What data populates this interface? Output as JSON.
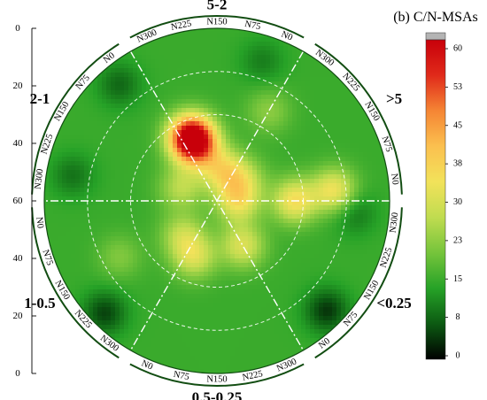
{
  "chart_data": {
    "type": "heatmap",
    "projection": "polar",
    "title": "(b) C/N-MSAs",
    "sectors": [
      {
        "label": "5-2",
        "angle_deg": 90
      },
      {
        "label": ">5",
        "angle_deg": 30
      },
      {
        "label": "<0.25",
        "angle_deg": -30
      },
      {
        "label": "0.5-0.25",
        "angle_deg": -90
      },
      {
        "label": "1-0.5",
        "angle_deg": -150
      },
      {
        "label": "2-1",
        "angle_deg": 150
      }
    ],
    "ring_ticks": [
      "N0",
      "N75",
      "N150",
      "N225",
      "N300"
    ],
    "left_axis": {
      "upper": [
        "0",
        "20",
        "40",
        "60"
      ],
      "lower": [
        "60",
        "40",
        "20",
        "0"
      ]
    },
    "colorbar": {
      "ticks": [
        "60",
        "53",
        "45",
        "38",
        "30",
        "23",
        "15",
        "8",
        "0"
      ],
      "range": [
        0,
        60
      ],
      "colors": [
        "#000000",
        "#0c5a12",
        "#26a227",
        "#75c43b",
        "#c0dc50",
        "#f2e25a",
        "#fbc04f",
        "#f58534",
        "#e02a1a",
        "#c8000a"
      ],
      "over_color": "#b4b4b4"
    },
    "background_value": 15,
    "hotspots": [
      {
        "angle_deg": 112,
        "radius": 0.4,
        "value": 60
      },
      {
        "angle_deg": 110,
        "radius": 0.33,
        "value": 34
      },
      {
        "angle_deg": 0,
        "radius": 0.45,
        "value": 34
      },
      {
        "angle_deg": 5,
        "radius": 0.68,
        "value": 33
      },
      {
        "angle_deg": 0,
        "radius": 0.12,
        "value": 32
      },
      {
        "angle_deg": 80,
        "radius": 0.18,
        "value": 31
      },
      {
        "angle_deg": -60,
        "radius": 0.3,
        "value": 30
      },
      {
        "angle_deg": -112,
        "radius": 0.35,
        "value": 29
      },
      {
        "angle_deg": -135,
        "radius": 0.28,
        "value": 26
      },
      {
        "angle_deg": 160,
        "radius": 0.22,
        "value": 26
      },
      {
        "angle_deg": 40,
        "radius": 0.2,
        "value": 25
      },
      {
        "angle_deg": 60,
        "radius": 0.6,
        "value": 22
      },
      {
        "angle_deg": -150,
        "radius": 0.65,
        "value": 21
      },
      {
        "angle_deg": 130,
        "radius": 0.88,
        "value": 8
      },
      {
        "angle_deg": -45,
        "radius": 0.9,
        "value": 4
      },
      {
        "angle_deg": -135,
        "radius": 0.92,
        "value": 5
      },
      {
        "angle_deg": 170,
        "radius": 0.85,
        "value": 9
      },
      {
        "angle_deg": -5,
        "radius": 0.8,
        "value": 9
      },
      {
        "angle_deg": 72,
        "radius": 0.85,
        "value": 10
      }
    ]
  }
}
